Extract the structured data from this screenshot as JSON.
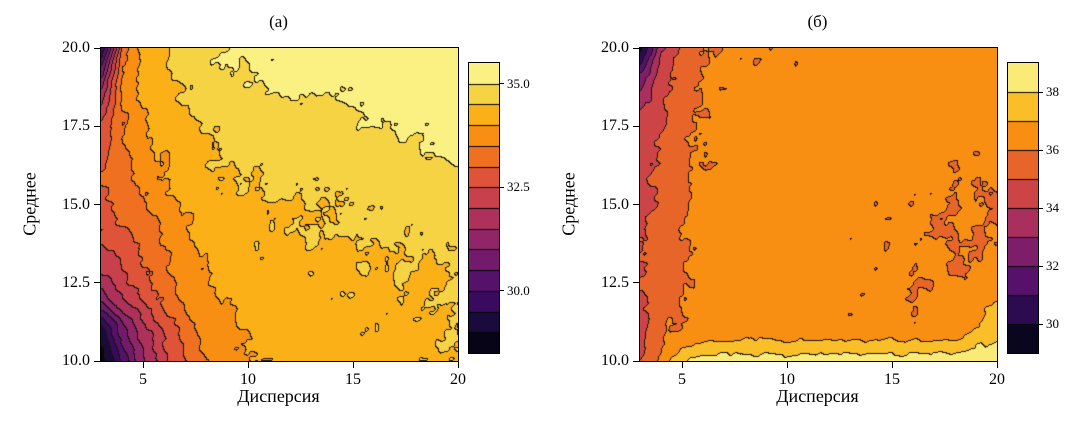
{
  "style": {
    "background": "#ffffff",
    "frame_color": "#000000",
    "contour_line_color": "#1a1614",
    "colormap_stops": [
      [
        0.0,
        "#000004"
      ],
      [
        0.1,
        "#160b39"
      ],
      [
        0.2,
        "#420a68"
      ],
      [
        0.3,
        "#6a176e"
      ],
      [
        0.4,
        "#932667"
      ],
      [
        0.5,
        "#bc3754"
      ],
      [
        0.6,
        "#dd513a"
      ],
      [
        0.7,
        "#f37819"
      ],
      [
        0.8,
        "#fca50a"
      ],
      [
        0.9,
        "#f6d746"
      ],
      [
        1.0,
        "#fcffa4"
      ]
    ]
  },
  "chart_data": [
    {
      "type": "contour",
      "title": "(а)",
      "xlabel": "Дисперсия",
      "ylabel": "Среднее",
      "xlim": [
        3,
        20
      ],
      "ylim": [
        10,
        20
      ],
      "xticks": [
        5,
        10,
        15,
        20
      ],
      "xtick_labels": [
        "5",
        "10",
        "15",
        "20"
      ],
      "yticks": [
        10,
        12.5,
        15,
        17.5,
        20
      ],
      "ytick_labels": [
        "10.0",
        "12.5",
        "15.0",
        "17.5",
        "20.0"
      ],
      "levels": {
        "min": 28.5,
        "max": 35.5,
        "step": 0.5
      },
      "colorbar_ticks": [
        30.0,
        32.5,
        35.0
      ],
      "colorbar_tick_labels": [
        "30.0",
        "32.5",
        "35.0"
      ],
      "colormap": "inferno",
      "legend": "colorbar-right",
      "grid": {
        "x": [
          3,
          4,
          5,
          6,
          7,
          8,
          10,
          12,
          14,
          16,
          18,
          20
        ],
        "y": [
          10,
          11,
          12,
          13,
          14,
          15,
          16,
          17.5,
          19,
          20
        ],
        "z": [
          [
            28.6,
            30.2,
            31.4,
            32.3,
            33.0,
            33.5,
            34.0,
            34.2,
            34.3,
            34.3,
            34.4,
            34.4
          ],
          [
            29.2,
            30.8,
            31.8,
            32.6,
            33.2,
            33.7,
            34.1,
            34.2,
            34.3,
            34.4,
            34.4,
            34.5
          ],
          [
            31.3,
            32.0,
            32.6,
            33.1,
            33.6,
            33.9,
            34.2,
            34.3,
            34.4,
            34.4,
            34.5,
            34.5
          ],
          [
            32.1,
            32.5,
            33.0,
            33.4,
            33.8,
            34.0,
            34.3,
            34.4,
            34.4,
            34.5,
            34.5,
            34.5
          ],
          [
            32.5,
            32.9,
            33.3,
            33.6,
            33.9,
            34.2,
            34.4,
            34.4,
            34.5,
            34.5,
            34.6,
            34.6
          ],
          [
            32.8,
            33.2,
            33.5,
            33.8,
            34.1,
            34.3,
            34.4,
            34.5,
            34.5,
            34.6,
            34.7,
            34.7
          ],
          [
            33.0,
            33.4,
            33.7,
            34.0,
            34.2,
            34.4,
            34.5,
            34.6,
            34.6,
            34.7,
            34.8,
            34.9
          ],
          [
            32.6,
            33.5,
            33.9,
            34.2,
            34.4,
            34.5,
            34.7,
            34.8,
            34.9,
            35.0,
            35.1,
            35.1
          ],
          [
            31.2,
            33.6,
            34.1,
            34.4,
            34.6,
            34.8,
            35.0,
            35.1,
            35.1,
            35.2,
            35.2,
            35.3
          ],
          [
            29.4,
            33.2,
            34.1,
            34.5,
            34.8,
            35.0,
            35.1,
            35.2,
            35.2,
            35.3,
            35.3,
            35.4
          ]
        ]
      }
    },
    {
      "type": "contour",
      "title": "(б)",
      "xlabel": "Дисперсия",
      "ylabel": "Среднее",
      "xlim": [
        3,
        20
      ],
      "ylim": [
        10,
        20
      ],
      "xticks": [
        5,
        10,
        15,
        20
      ],
      "xtick_labels": [
        "5",
        "10",
        "15",
        "20"
      ],
      "yticks": [
        10,
        12.5,
        15,
        17.5,
        20
      ],
      "ytick_labels": [
        "10.0",
        "12.5",
        "15.0",
        "17.5",
        "20.0"
      ],
      "levels": {
        "min": 29,
        "max": 39,
        "step": 1
      },
      "colorbar_ticks": [
        30,
        32,
        34,
        36,
        38
      ],
      "colorbar_tick_labels": [
        "30",
        "32",
        "34",
        "36",
        "38"
      ],
      "colormap": "inferno",
      "legend": "colorbar-right",
      "grid": {
        "x": [
          3,
          4,
          5,
          6,
          7,
          8,
          10,
          12,
          14,
          16,
          18,
          20
        ],
        "y": [
          10,
          11,
          12,
          13,
          14,
          15,
          16,
          17.5,
          19,
          20
        ],
        "z": [
          [
            34.8,
            36.3,
            37.8,
            38.4,
            38.5,
            38.5,
            38.5,
            38.5,
            38.5,
            38.5,
            38.6,
            38.8
          ],
          [
            34.9,
            35.6,
            36.2,
            36.3,
            36.4,
            36.4,
            36.3,
            36.3,
            36.2,
            36.2,
            36.5,
            37.6
          ],
          [
            35.0,
            35.5,
            36.1,
            36.3,
            36.4,
            36.4,
            36.3,
            36.3,
            36.2,
            36.1,
            36.1,
            36.9
          ],
          [
            35.0,
            35.4,
            36.0,
            36.3,
            36.4,
            36.4,
            36.4,
            36.3,
            36.2,
            36.1,
            36.0,
            36.2
          ],
          [
            35.0,
            35.3,
            36.0,
            36.3,
            36.4,
            36.4,
            36.4,
            36.3,
            36.3,
            36.1,
            36.0,
            36.1
          ],
          [
            34.9,
            35.3,
            35.9,
            36.2,
            36.4,
            36.4,
            36.4,
            36.4,
            36.3,
            36.2,
            36.0,
            36.0
          ],
          [
            34.8,
            35.2,
            35.8,
            36.2,
            36.3,
            36.4,
            36.4,
            36.4,
            36.4,
            36.3,
            36.1,
            36.1
          ],
          [
            34.6,
            35.0,
            35.7,
            36.1,
            36.3,
            36.3,
            36.4,
            36.4,
            36.4,
            36.4,
            36.3,
            36.3
          ],
          [
            32.5,
            34.6,
            35.5,
            36.0,
            36.2,
            36.3,
            36.3,
            36.4,
            36.4,
            36.4,
            36.4,
            36.4
          ],
          [
            29.3,
            34.0,
            35.3,
            35.9,
            36.1,
            36.2,
            36.3,
            36.3,
            36.4,
            36.4,
            36.4,
            36.4
          ]
        ]
      }
    }
  ]
}
